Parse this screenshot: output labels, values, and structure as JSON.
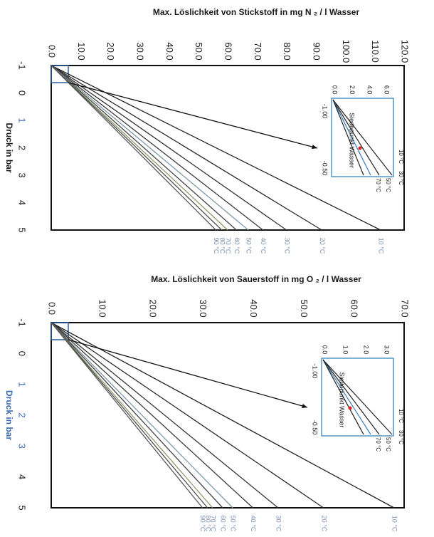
{
  "chart_data": [
    {
      "type": "line",
      "title": "Max. Löslichkeit von Stickstoff in mg N ₂ / l Wasser",
      "title_color": "#1a1a1a",
      "title_accent": "/ l Wasser",
      "title_accent_color": "#3a7ab8",
      "xlabel": "Druck in bar",
      "xlim": [
        -1,
        5
      ],
      "ylim": [
        0,
        120
      ],
      "x_ticks": [
        "-1",
        "0",
        "1",
        "2",
        "3",
        "4",
        "5"
      ],
      "y_ticks": [
        "0.0",
        "10.0",
        "20.0",
        "30.0",
        "40.0",
        "50.0",
        "60.0",
        "70.0",
        "80.0",
        "90.0",
        "100.0",
        "110.0",
        "120.0"
      ],
      "grid": false,
      "series": [
        {
          "name": "10 °C",
          "x": [
            -1,
            5
          ],
          "y": [
            0,
            112
          ],
          "color": "#1f1f1f"
        },
        {
          "name": "20 °C",
          "x": [
            -1,
            5
          ],
          "y": [
            0,
            92
          ],
          "color": "#2a2a2a"
        },
        {
          "name": "30 °C",
          "x": [
            -1,
            5
          ],
          "y": [
            0,
            80
          ],
          "color": "#333333"
        },
        {
          "name": "40 °C",
          "x": [
            -1,
            5
          ],
          "y": [
            0,
            72
          ],
          "color": "#3b3b3b"
        },
        {
          "name": "50 °C",
          "x": [
            -1,
            5
          ],
          "y": [
            0,
            67
          ],
          "color": "#7f9aa8"
        },
        {
          "name": "60 °C",
          "x": [
            -1,
            5
          ],
          "y": [
            0,
            63
          ],
          "color": "#444444"
        },
        {
          "name": "70 °C",
          "x": [
            -1,
            5
          ],
          "y": [
            0,
            60
          ],
          "color": "#8a9a6a"
        },
        {
          "name": "80 °C",
          "x": [
            -1,
            5
          ],
          "y": [
            0,
            58
          ],
          "color": "#505050"
        },
        {
          "name": "90 °C",
          "x": [
            -1,
            5
          ],
          "y": [
            0,
            56
          ],
          "color": "#585858"
        }
      ],
      "series_labels": [
        "10 °C",
        "20 °C",
        "30 °C",
        "40 °C",
        "50 °C",
        "60 °C",
        "70 °C",
        "80 °C",
        "90 °C"
      ],
      "inset": {
        "x_ticks": [
          "-1.00",
          "-0.50"
        ],
        "y_ticks": [
          "0.0",
          "2.0",
          "4.0",
          "6.0"
        ],
        "label": "Siedepunkt Wasser",
        "temp_labels": [
          "10 °C",
          "30 °C",
          "50 °C",
          "70 °C"
        ]
      }
    },
    {
      "type": "line",
      "title": "Max. Löslichkeit von Sauerstoff in mg O ₂ / l Wasser",
      "title_color": "#1a1a1a",
      "title_accent": "/ l Wasser",
      "title_accent_color": "#3a4aa8",
      "xlabel": "Druck in bar",
      "xlabel_color": "#3a6ab0",
      "xlim": [
        -1,
        5
      ],
      "ylim": [
        0,
        70
      ],
      "x_ticks": [
        "-1",
        "0",
        "1",
        "2",
        "3",
        "4",
        "5"
      ],
      "y_ticks": [
        "0.0",
        "10.0",
        "20.0",
        "30.0",
        "40.0",
        "50.0",
        "60.0",
        "70.0"
      ],
      "grid": false,
      "series": [
        {
          "name": "10 °C",
          "x": [
            -1,
            5
          ],
          "y": [
            0,
            68
          ],
          "color": "#1f1f1f"
        },
        {
          "name": "20 °C",
          "x": [
            -1,
            5
          ],
          "y": [
            0,
            54
          ],
          "color": "#2a2a2a"
        },
        {
          "name": "30 °C",
          "x": [
            -1,
            5
          ],
          "y": [
            0,
            45
          ],
          "color": "#333333"
        },
        {
          "name": "40 °C",
          "x": [
            -1,
            5
          ],
          "y": [
            0,
            40
          ],
          "color": "#3b3b3b"
        },
        {
          "name": "50 °C",
          "x": [
            -1,
            5
          ],
          "y": [
            0,
            36
          ],
          "color": "#7f9aa8"
        },
        {
          "name": "60 °C",
          "x": [
            -1,
            5
          ],
          "y": [
            0,
            34
          ],
          "color": "#444444"
        },
        {
          "name": "70 °C",
          "x": [
            -1,
            5
          ],
          "y": [
            0,
            32
          ],
          "color": "#8a9a6a"
        },
        {
          "name": "80 °C",
          "x": [
            -1,
            5
          ],
          "y": [
            0,
            31
          ],
          "color": "#505050"
        },
        {
          "name": "90 °C",
          "x": [
            -1,
            5
          ],
          "y": [
            0,
            30
          ],
          "color": "#585858"
        }
      ],
      "series_labels": [
        "10 °C",
        "20 °C",
        "30 °C",
        "40 °C",
        "50 °C",
        "60 °C",
        "70 °C",
        "80 °C",
        "90 °C"
      ],
      "inset": {
        "x_ticks": [
          "-1.00",
          "-0.50"
        ],
        "y_ticks": [
          "0.0",
          "1.0",
          "2.0",
          "3.0"
        ],
        "label": "Siedepunkt Wasser",
        "temp_labels": [
          "10 °C",
          "30 °C",
          "50 °C",
          "70 °C"
        ]
      }
    }
  ]
}
